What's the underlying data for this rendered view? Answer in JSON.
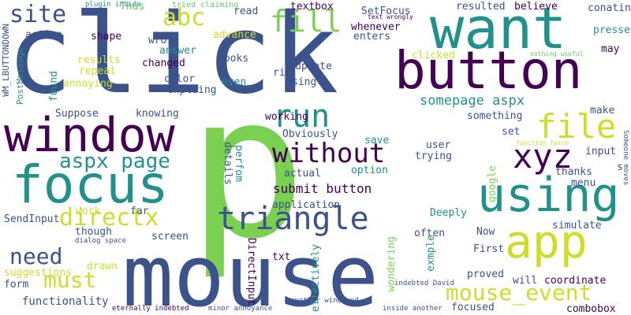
{
  "palette": {
    "purple": "#440154",
    "indigo": "#3b528b",
    "teal": "#21918c",
    "green": "#5ec962",
    "yellow": "#cddd2a",
    "lime": "#7ad151"
  },
  "words": [
    "click",
    "p",
    "mouse",
    "want",
    "button",
    "window",
    "focus",
    "using",
    "app",
    "triangle",
    "without",
    "run",
    "file",
    "xyz",
    "directx",
    "site",
    "abc",
    "fill",
    "need",
    "must",
    "mouse_event",
    "aspx page",
    "somepage aspx",
    "submit button",
    "plugin inside",
    "tried claiming",
    "read",
    "textbox",
    "SetFocus",
    "resulted",
    "believe",
    "conatins",
    "Thus",
    "text wrongly",
    "whenever",
    "enters",
    "pressed",
    "may",
    "action",
    "shape",
    "wrote",
    "advance",
    "answer",
    "changed",
    "looks",
    "update",
    "rid",
    "clicked",
    "nothing useful",
    "results",
    "repeat",
    "annoying",
    "color",
    "explaing",
    "even",
    "single",
    "knowing",
    "Suppose",
    "working",
    "something",
    "Obviously",
    "save",
    "make",
    "set",
    "function twice",
    "details",
    "perfom",
    "user",
    "trying",
    "input",
    "thanks",
    "menu",
    "google",
    "option",
    "application",
    "actual",
    "work",
    "far",
    "Deeply",
    "SendInput",
    "though",
    "screen",
    "dialog space",
    "suggestions",
    "drawn",
    "form",
    "functionality",
    "eternally indebted",
    "minor annoyance",
    "another windowed",
    "inside another",
    "txt",
    "DirectInput",
    "effectively",
    "wondering",
    "exmple",
    "often",
    "proved",
    "First",
    "Now",
    "simulate",
    "will",
    "coordinate",
    "focused",
    "combobox",
    "indebted David",
    "WM_LBUTTONDOWN",
    "PostMessage",
    "found",
    "Someone moves",
    "s"
  ]
}
